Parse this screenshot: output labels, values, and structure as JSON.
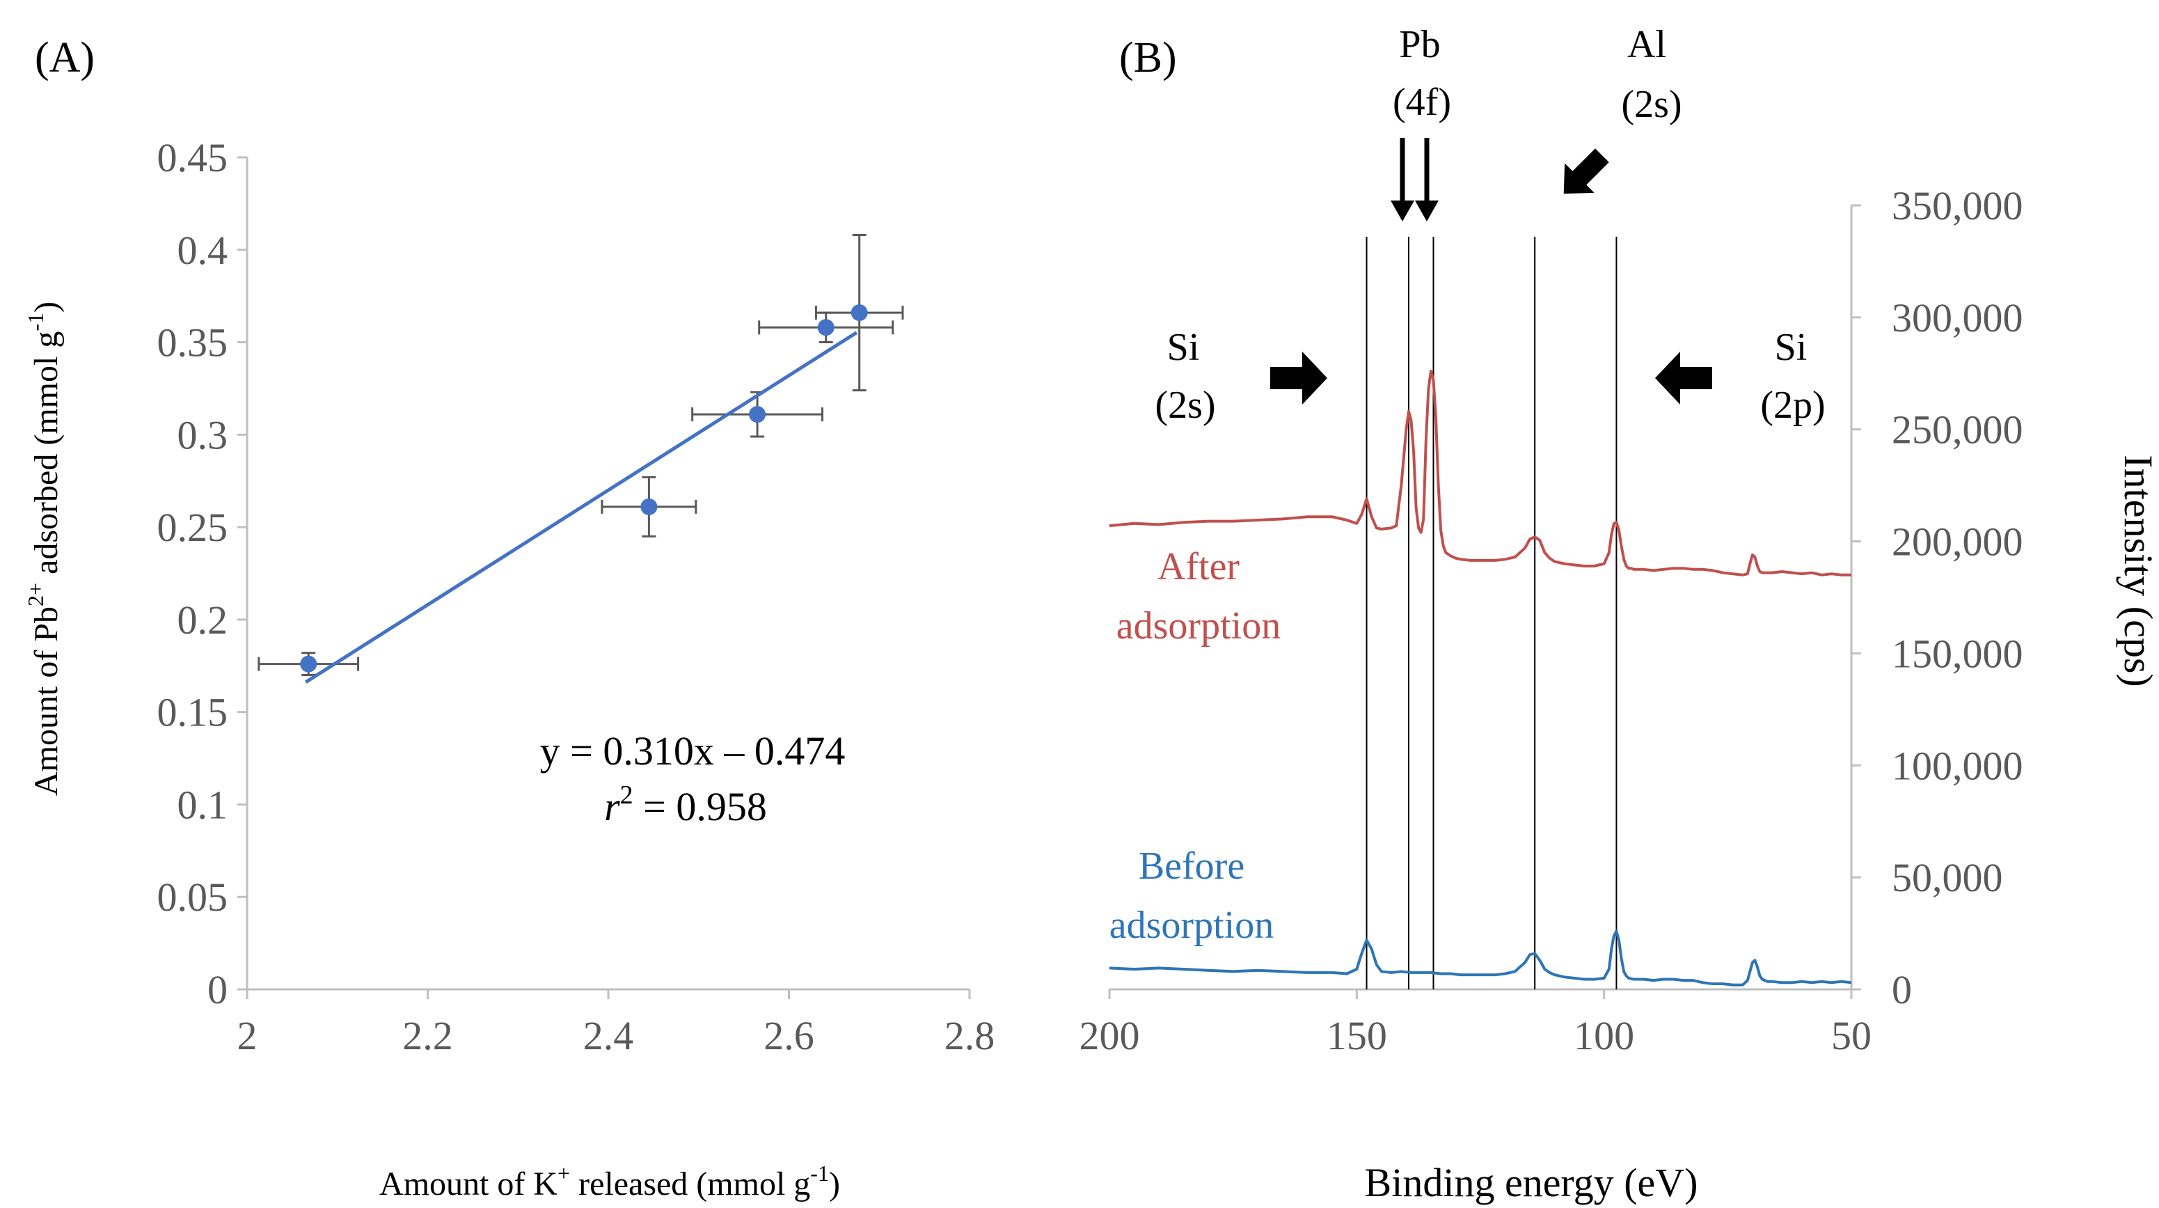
{
  "chart_data": [
    {
      "panel": "(A)",
      "type": "scatter",
      "xlabel": "Amount of K",
      "xlabel_sup": "+",
      "xlabel_tail": " released (mmol g",
      "xlabel_tail_sup": "-1",
      "xlabel_end": ")",
      "ylabel": "Amount of Pb",
      "ylabel_sup": "2+",
      "ylabel_tail": " adsorbed (mmol g",
      "ylabel_tail_sup": "-1",
      "ylabel_end": ")",
      "xlim": [
        2,
        2.8
      ],
      "ylim": [
        0,
        0.45
      ],
      "x_ticks": [
        "2",
        "2.2",
        "2.4",
        "2.6",
        "2.8"
      ],
      "y_ticks": [
        "0",
        "0.05",
        "0.1",
        "0.15",
        "0.2",
        "0.25",
        "0.3",
        "0.35",
        "0.4",
        "0.45"
      ],
      "points": [
        {
          "x": 2.068,
          "y": 0.176,
          "xerr": 0.055,
          "yerr": 0.006
        },
        {
          "x": 2.445,
          "y": 0.261,
          "xerr": 0.052,
          "yerr": 0.016
        },
        {
          "x": 2.565,
          "y": 0.311,
          "xerr": 0.072,
          "yerr": 0.012
        },
        {
          "x": 2.641,
          "y": 0.358,
          "xerr": 0.074,
          "yerr": 0.008
        },
        {
          "x": 2.678,
          "y": 0.366,
          "xerr": 0.048,
          "yerr": 0.042
        }
      ],
      "fit": {
        "x_start": 2.065,
        "x_end": 2.675,
        "slope": 0.31,
        "intercept": -0.474
      },
      "equation": "y = 0.310x – 0.474",
      "r2_symbol": "r",
      "r2_sup": "2",
      "r2_value": " = 0.958",
      "colors": {
        "points": "#4472C4",
        "fit": "#4472C4",
        "errorbar": "#595959",
        "axis": "#BFBFBF",
        "text": "#595959"
      }
    },
    {
      "panel": "(B)",
      "type": "line",
      "xlabel": "Binding energy (eV)",
      "ylabel": "Intensity (cps)",
      "xlim": [
        200,
        50
      ],
      "ylim": [
        0,
        350000
      ],
      "x_ticks": [
        "200",
        "150",
        "100",
        "50"
      ],
      "y_ticks": [
        "0",
        "50,000",
        "100,000",
        "150,000",
        "200,000",
        "250,000",
        "300,000",
        "350,000"
      ],
      "reference_lines_ev": [
        148,
        139.5,
        134.5,
        114,
        97.5
      ],
      "series": [
        {
          "name": "After adsorption",
          "label_line1": "After",
          "label_line2": "adsorption",
          "color": "#C0504D",
          "x": [
            200,
            195,
            190,
            185,
            180,
            175,
            170,
            165,
            160,
            155,
            152,
            150,
            149,
            148,
            147,
            146,
            145,
            143,
            142,
            141,
            140,
            139.5,
            139,
            138.5,
            138,
            137.5,
            137,
            136.5,
            136,
            135.5,
            135,
            134.5,
            134,
            133.5,
            133,
            132.5,
            132,
            131,
            130,
            129,
            127,
            125,
            122,
            120,
            118,
            116,
            115,
            114,
            113,
            112,
            111,
            110,
            108,
            106,
            104,
            102,
            100,
            99,
            98.5,
            98,
            97.5,
            97,
            96.5,
            96,
            95.5,
            95,
            94.5,
            94,
            93,
            92,
            90,
            88,
            86,
            84,
            82,
            80,
            78,
            76,
            74,
            72,
            71,
            70.5,
            70,
            69.5,
            69,
            68.5,
            68,
            67,
            66,
            64,
            62,
            60,
            58,
            56,
            54,
            52,
            50
          ],
          "y": [
            207000,
            208000,
            207500,
            208500,
            209000,
            209000,
            209500,
            210000,
            211000,
            211000,
            209500,
            208000,
            212000,
            219000,
            211000,
            206000,
            205500,
            206000,
            207000,
            225000,
            250000,
            258000,
            254000,
            240000,
            215000,
            206000,
            204000,
            210000,
            245000,
            268000,
            276000,
            272000,
            255000,
            225000,
            205000,
            198000,
            195000,
            193500,
            192500,
            192000,
            191500,
            191500,
            191500,
            192000,
            193000,
            197000,
            201000,
            202000,
            200500,
            195000,
            192500,
            191000,
            190000,
            189500,
            189000,
            189000,
            190000,
            195000,
            203000,
            208000,
            208500,
            205000,
            198000,
            192000,
            189000,
            188000,
            188000,
            187500,
            187500,
            187500,
            187000,
            187500,
            188000,
            188000,
            187500,
            187500,
            187000,
            186000,
            185500,
            185000,
            185500,
            190000,
            194000,
            193000,
            189000,
            186500,
            186000,
            186000,
            186000,
            186500,
            186000,
            185500,
            186000,
            185000,
            185500,
            185000,
            185000
          ]
        },
        {
          "name": "Before adsorption",
          "label_line1": "Before",
          "label_line2": "adsorption",
          "color": "#2E75B6",
          "x": [
            200,
            195,
            190,
            185,
            180,
            175,
            170,
            165,
            160,
            155,
            152,
            150,
            149,
            148,
            147,
            146,
            145,
            143,
            141,
            139,
            137,
            135,
            133,
            131,
            129,
            127,
            125,
            122,
            120,
            118,
            116,
            115,
            114,
            113,
            112,
            111,
            110,
            108,
            106,
            104,
            102,
            100,
            99,
            98.5,
            98,
            97.5,
            97,
            96.5,
            96,
            95.5,
            95,
            94,
            92,
            90,
            88,
            86,
            84,
            82,
            80,
            78,
            76,
            74,
            72,
            71,
            70.5,
            70,
            69.5,
            69,
            68.5,
            68,
            67,
            66,
            64,
            62,
            60,
            58,
            56,
            54,
            52,
            50
          ],
          "y": [
            9500,
            9000,
            9500,
            9000,
            8500,
            8000,
            8500,
            8000,
            7500,
            7500,
            7000,
            9000,
            16000,
            22000,
            18000,
            11000,
            8000,
            7500,
            8000,
            7500,
            7500,
            7500,
            7000,
            7000,
            6500,
            6500,
            6500,
            6500,
            7000,
            8000,
            12000,
            15500,
            16000,
            13000,
            9000,
            7500,
            6500,
            5500,
            5000,
            4500,
            4500,
            5000,
            9000,
            18000,
            24000,
            26000,
            22000,
            14000,
            8000,
            6000,
            5000,
            4500,
            4500,
            4000,
            4500,
            4500,
            4000,
            4000,
            3000,
            2500,
            2500,
            2000,
            2000,
            4000,
            8000,
            12000,
            13000,
            10000,
            6000,
            4500,
            3500,
            3500,
            3000,
            3000,
            3500,
            3000,
            3500,
            3000,
            3500,
            3000
          ]
        }
      ],
      "annotations": {
        "pb_label": "Pb",
        "pb_sub": "(4f)",
        "al_label": "Al",
        "al_sub": "(2s)",
        "si_left_label": "Si",
        "si_left_sub": "(2s)",
        "si_right_label": "Si",
        "si_right_sub": "(2p)"
      },
      "colors": {
        "axis": "#BFBFBF",
        "text": "#595959",
        "reference": "#000000",
        "arrow": "#000000"
      }
    }
  ]
}
